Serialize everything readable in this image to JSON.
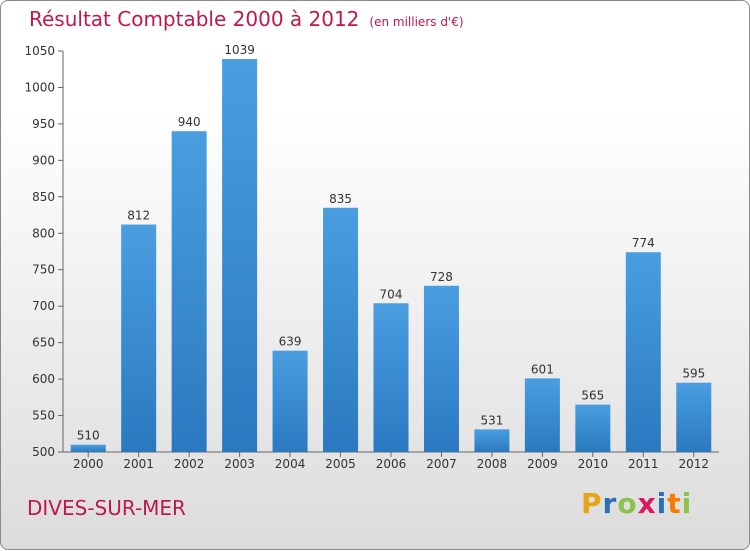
{
  "title": "Résultat Comptable 2000 à 2012",
  "subtitle": "(en milliers d'€)",
  "location": "DIVES-SUR-MER",
  "logo": {
    "letters": [
      "P",
      "r",
      "o",
      "x",
      "i",
      "t",
      "i"
    ],
    "colors": [
      "#e8a317",
      "#2b6fb4",
      "#8bc34a",
      "#d81b60",
      "#2b6fb4",
      "#f57c00",
      "#8bc34a"
    ]
  },
  "colors": {
    "bar": "#4a9ee0",
    "bar_dark": "#2a79c0",
    "accent": "#c0184a",
    "text": "#333333"
  },
  "chart_data": {
    "type": "bar",
    "title": "Résultat Comptable 2000 à 2012",
    "subtitle": "(en milliers d'€)",
    "xlabel": "",
    "ylabel": "",
    "categories": [
      "2000",
      "2001",
      "2002",
      "2003",
      "2004",
      "2005",
      "2006",
      "2007",
      "2008",
      "2009",
      "2010",
      "2011",
      "2012"
    ],
    "values": [
      510,
      812,
      940,
      1039,
      639,
      835,
      704,
      728,
      531,
      601,
      565,
      774,
      595
    ],
    "ylim": [
      500,
      1050
    ],
    "yticks": [
      500,
      550,
      600,
      650,
      700,
      750,
      800,
      850,
      900,
      950,
      1000,
      1050
    ],
    "grid": false
  }
}
